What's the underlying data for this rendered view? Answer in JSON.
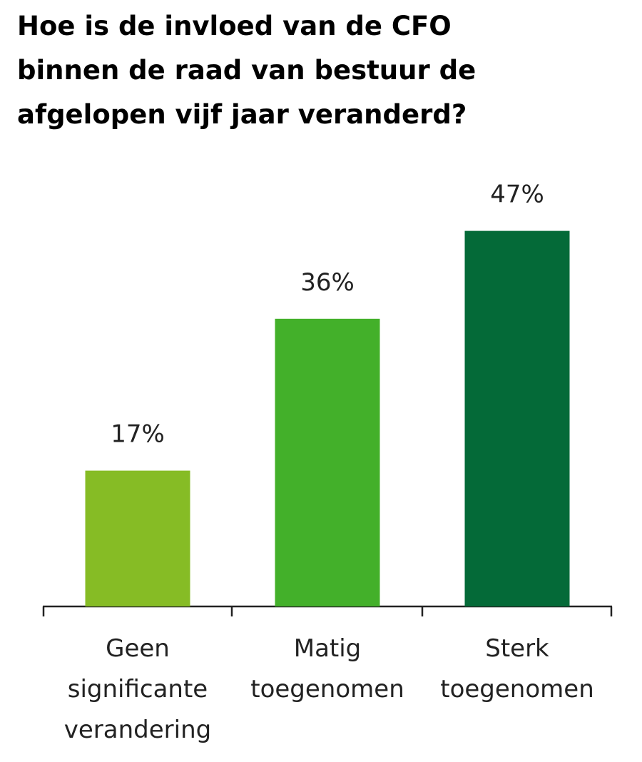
{
  "chart_data": {
    "type": "bar",
    "title": "Hoe is de invloed van de CFO binnen de raad van bestuur de afgelopen vijf jaar veranderd?",
    "categories": [
      "Geen significante verandering",
      "Matig toegenomen",
      "Sterk toegenomen"
    ],
    "values": [
      17,
      36,
      47
    ],
    "value_labels": [
      "17%",
      "36%",
      "47%"
    ],
    "colors": [
      "#86bc25",
      "#43b02a",
      "#046a38"
    ]
  }
}
